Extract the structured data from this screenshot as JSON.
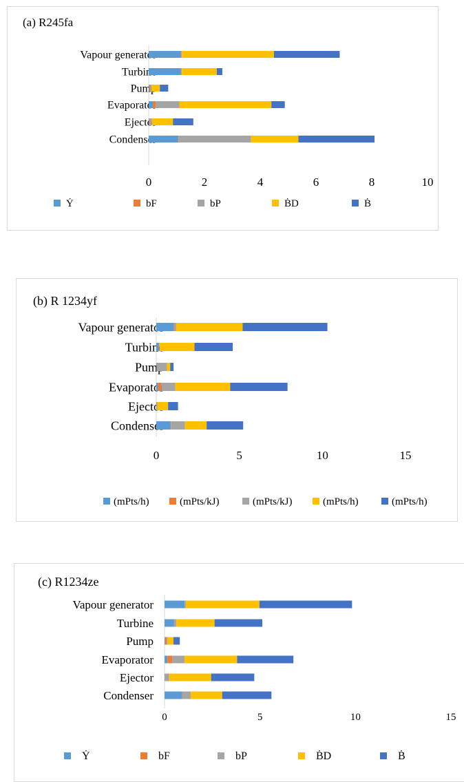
{
  "colors": {
    "Y": "#5B9BD5",
    "bF": "#ED7D31",
    "bP": "#A5A5A5",
    "BD": "#FFC000",
    "B": "#4472C4"
  },
  "chart_data": [
    {
      "type": "bar",
      "orientation": "horizontal",
      "stacked": true,
      "title": "(a)  R245fa",
      "categories": [
        "Condenser",
        "Ejector",
        "Evaporator",
        "Pump",
        "Turbine",
        "Vapour generator"
      ],
      "xlim": [
        0,
        10
      ],
      "xticks": [
        "0",
        "2",
        "4",
        "6",
        "8",
        "10"
      ],
      "grid": false,
      "legend_position": "bottom",
      "series": [
        {
          "name": "Ẏ",
          "color_key": "Y",
          "values": [
            1.05,
            0.02,
            0.15,
            0.02,
            1.15,
            1.15
          ]
        },
        {
          "name": "bF",
          "color_key": "bF",
          "values": [
            0.02,
            0.02,
            0.1,
            0.03,
            0.02,
            0.02
          ]
        },
        {
          "name": "bP",
          "color_key": "bP",
          "values": [
            2.6,
            0.08,
            0.85,
            0.05,
            0.02,
            0.02
          ]
        },
        {
          "name": "ḂD",
          "color_key": "BD",
          "values": [
            1.7,
            0.75,
            3.3,
            0.3,
            1.25,
            3.3
          ]
        },
        {
          "name": "Ḃ",
          "color_key": "B",
          "values": [
            2.73,
            0.73,
            0.48,
            0.3,
            0.2,
            2.36
          ]
        }
      ]
    },
    {
      "type": "bar",
      "orientation": "horizontal",
      "stacked": true,
      "title": "(b)   R 1234yf",
      "categories": [
        "Condenser",
        "Ejector",
        "Evaporator",
        "Pump",
        "Turbine",
        "Vapour generator"
      ],
      "xlim": [
        0,
        15
      ],
      "xticks": [
        "0",
        "5",
        "10",
        "15"
      ],
      "grid": false,
      "legend_position": "bottom",
      "series": [
        {
          "name": "(mPts/h)",
          "color_key": "Y",
          "values": [
            0.85,
            0.02,
            0.1,
            0.02,
            0.15,
            1.05
          ]
        },
        {
          "name": "(mPts/kJ)",
          "color_key": "bF",
          "values": [
            0.03,
            0.02,
            0.2,
            0.02,
            0.02,
            0.05
          ]
        },
        {
          "name": "(mPts/kJ)",
          "color_key": "bP",
          "values": [
            0.85,
            0.02,
            0.85,
            0.6,
            0.03,
            0.1
          ]
        },
        {
          "name": "(mPts/h)",
          "color_key": "BD",
          "values": [
            1.3,
            0.65,
            3.3,
            0.2,
            2.1,
            4.0
          ]
        },
        {
          "name": "(mPts/h)",
          "color_key": "B",
          "values": [
            2.2,
            0.6,
            3.45,
            0.2,
            2.3,
            5.1
          ]
        }
      ]
    },
    {
      "type": "bar",
      "orientation": "horizontal",
      "stacked": true,
      "title": "(c)    R1234ze",
      "categories": [
        "Condenser",
        "Ejector",
        "Evaporator",
        "Pump",
        "Turbine",
        "Vapour generator"
      ],
      "xlim": [
        0,
        15
      ],
      "xticks": [
        "0",
        "5",
        "10",
        "15"
      ],
      "grid": false,
      "legend_position": "bottom",
      "series": [
        {
          "name": "Ẏ",
          "color_key": "Y",
          "values": [
            0.9,
            0.02,
            0.15,
            0.02,
            0.5,
            1.05
          ]
        },
        {
          "name": "bF",
          "color_key": "bF",
          "values": [
            0.02,
            0.02,
            0.25,
            0.1,
            0.02,
            0.02
          ]
        },
        {
          "name": "bP",
          "color_key": "bP",
          "values": [
            0.45,
            0.2,
            0.65,
            0.05,
            0.1,
            0.05
          ]
        },
        {
          "name": "ḂD",
          "color_key": "BD",
          "values": [
            1.65,
            2.2,
            2.75,
            0.3,
            2.0,
            3.85
          ]
        },
        {
          "name": "Ḃ",
          "color_key": "B",
          "values": [
            2.58,
            2.26,
            2.95,
            0.33,
            2.5,
            4.85
          ]
        }
      ]
    }
  ]
}
